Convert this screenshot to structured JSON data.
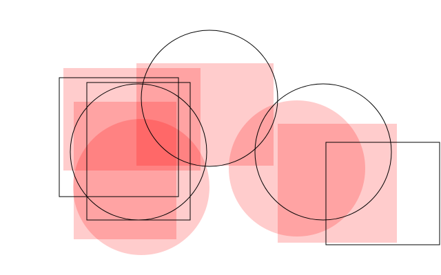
{
  "colors": {
    "background": "#ffffff",
    "fill": "#ff0000",
    "stroke": "#000000"
  },
  "fill_opacity": 0.2
}
